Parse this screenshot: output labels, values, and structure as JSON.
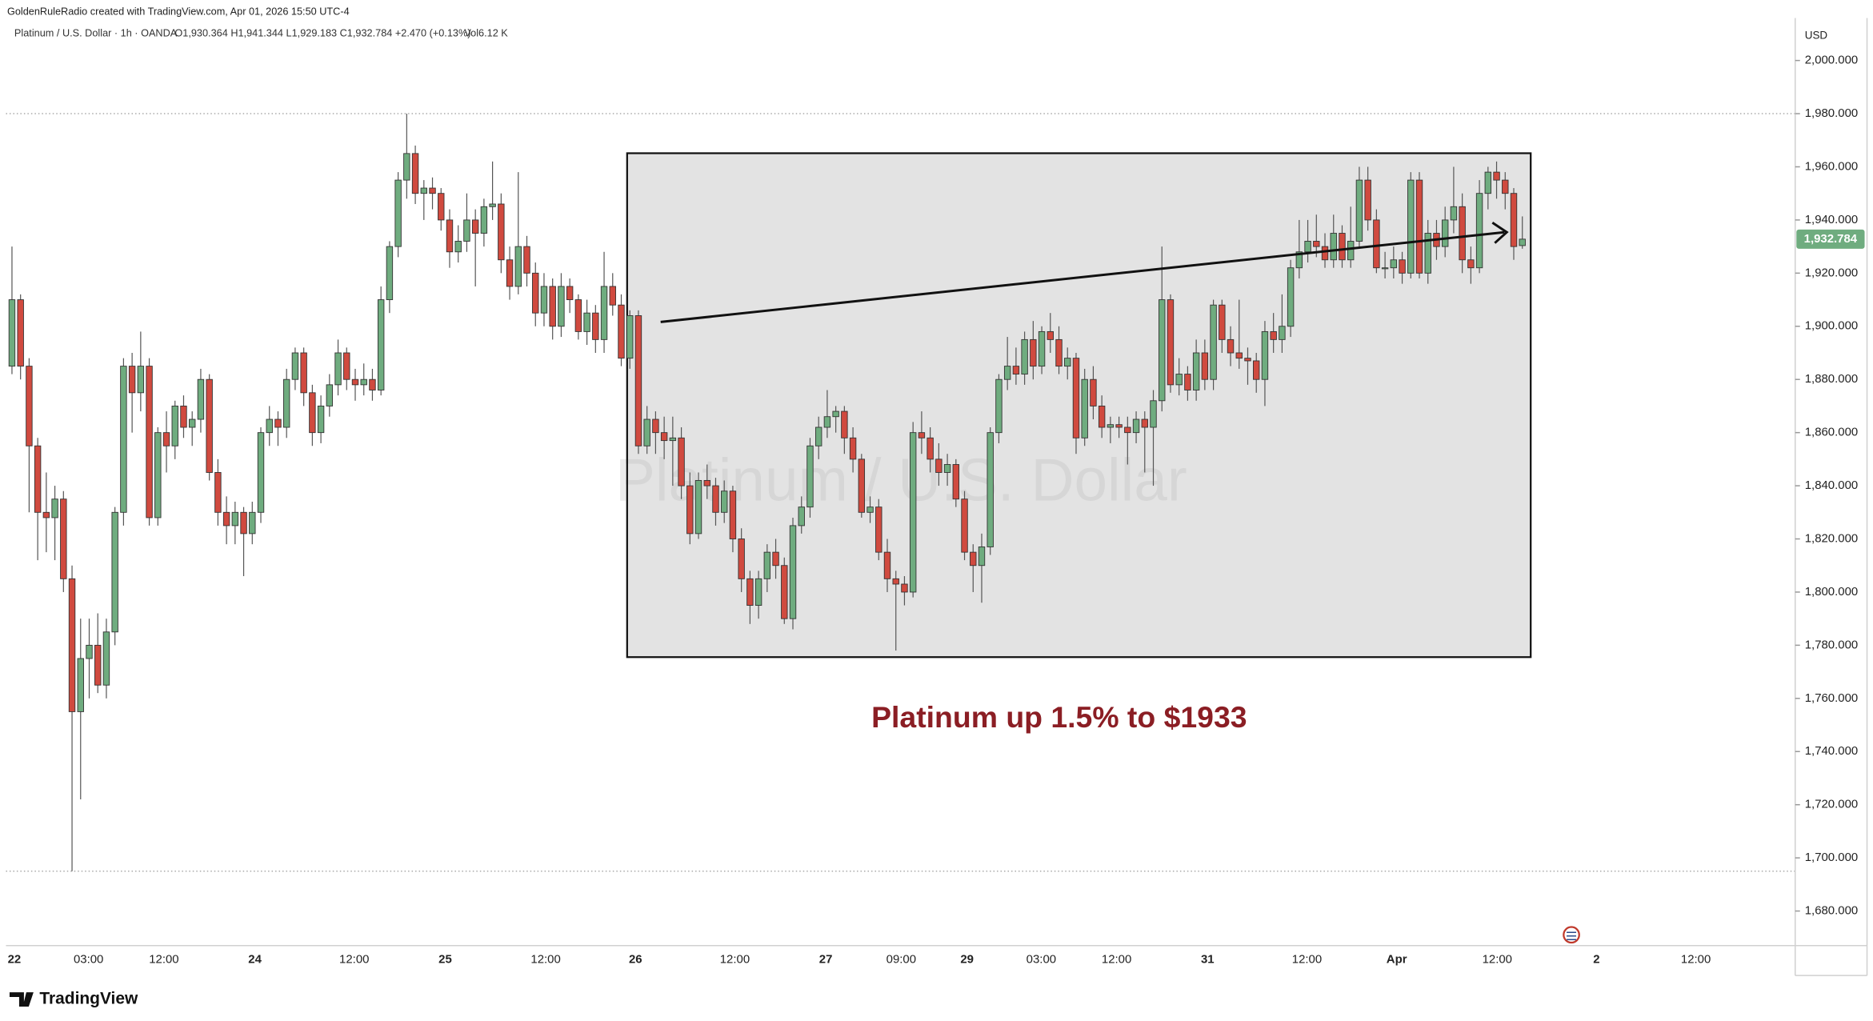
{
  "header": {
    "credit": "GoldenRuleRadio created with TradingView.com, Apr 01, 2026 15:50 UTC-4",
    "symbol": "Platinum / U.S. Dollar · 1h · OANDA",
    "ohlc": "O1,930.364 H1,941.344 L1,929.183 C1,932.784 +2.470 (+0.13%)",
    "volume": "Vol6.12 K"
  },
  "watermark": "Platinum / U.S. Dollar",
  "annotation": "Platinum up 1.5% to $1933",
  "currency": "USD",
  "price_label": "1,932.784",
  "logo": "TradingView",
  "chart_data": {
    "type": "candlestick",
    "up_color": "#6fac7f",
    "down_color": "#d04a3f",
    "ylim": [
      1667,
      2016
    ],
    "yticks": [
      {
        "value": 1680,
        "label": "1,680.000"
      },
      {
        "value": 1700,
        "label": "1,700.000"
      },
      {
        "value": 1720,
        "label": "1,720.000"
      },
      {
        "value": 1740,
        "label": "1,740.000"
      },
      {
        "value": 1760,
        "label": "1,760.000"
      },
      {
        "value": 1780,
        "label": "1,780.000"
      },
      {
        "value": 1800,
        "label": "1,800.000"
      },
      {
        "value": 1820,
        "label": "1,820.000"
      },
      {
        "value": 1840,
        "label": "1,840.000"
      },
      {
        "value": 1860,
        "label": "1,860.000"
      },
      {
        "value": 1880,
        "label": "1,880.000"
      },
      {
        "value": 1900,
        "label": "1,900.000"
      },
      {
        "value": 1920,
        "label": "1,920.000"
      },
      {
        "value": 1940,
        "label": "1,940.000"
      },
      {
        "value": 1960,
        "label": "1,960.000"
      },
      {
        "value": 1980,
        "label": "1,980.000"
      },
      {
        "value": 2000,
        "label": "2,000.000"
      }
    ],
    "time_labels": [
      "22",
      "03:00",
      "12:00",
      "24",
      "12:00",
      "25",
      "12:00",
      "26",
      "12:00",
      "27",
      "09:00",
      "29",
      "03:00",
      "12:00",
      "31",
      "12:00",
      "Apr",
      "12:00",
      "2",
      "12:00"
    ],
    "candles": [
      [
        1885,
        1930,
        1882,
        1910
      ],
      [
        1910,
        1912,
        1880,
        1885
      ],
      [
        1885,
        1888,
        1830,
        1855
      ],
      [
        1855,
        1858,
        1812,
        1830
      ],
      [
        1830,
        1845,
        1815,
        1828
      ],
      [
        1828,
        1840,
        1812,
        1835
      ],
      [
        1835,
        1838,
        1800,
        1805
      ],
      [
        1805,
        1810,
        1695,
        1755
      ],
      [
        1755,
        1790,
        1722,
        1775
      ],
      [
        1775,
        1790,
        1760,
        1780
      ],
      [
        1780,
        1792,
        1762,
        1765
      ],
      [
        1765,
        1790,
        1760,
        1785
      ],
      [
        1785,
        1832,
        1780,
        1830
      ],
      [
        1830,
        1888,
        1825,
        1885
      ],
      [
        1885,
        1890,
        1860,
        1875
      ],
      [
        1875,
        1898,
        1868,
        1885
      ],
      [
        1885,
        1888,
        1825,
        1828
      ],
      [
        1828,
        1862,
        1825,
        1860
      ],
      [
        1860,
        1868,
        1845,
        1855
      ],
      [
        1855,
        1872,
        1850,
        1870
      ],
      [
        1870,
        1874,
        1858,
        1862
      ],
      [
        1862,
        1868,
        1855,
        1865
      ],
      [
        1865,
        1884,
        1860,
        1880
      ],
      [
        1880,
        1882,
        1842,
        1845
      ],
      [
        1845,
        1850,
        1825,
        1830
      ],
      [
        1830,
        1836,
        1818,
        1825
      ],
      [
        1825,
        1834,
        1818,
        1830
      ],
      [
        1830,
        1832,
        1806,
        1822
      ],
      [
        1822,
        1834,
        1818,
        1830
      ],
      [
        1830,
        1862,
        1826,
        1860
      ],
      [
        1860,
        1870,
        1855,
        1865
      ],
      [
        1865,
        1868,
        1855,
        1862
      ],
      [
        1862,
        1884,
        1858,
        1880
      ],
      [
        1880,
        1892,
        1876,
        1890
      ],
      [
        1890,
        1892,
        1870,
        1875
      ],
      [
        1875,
        1878,
        1855,
        1860
      ],
      [
        1860,
        1874,
        1856,
        1870
      ],
      [
        1870,
        1882,
        1866,
        1878
      ],
      [
        1878,
        1895,
        1874,
        1890
      ],
      [
        1890,
        1892,
        1876,
        1880
      ],
      [
        1880,
        1884,
        1872,
        1878
      ],
      [
        1878,
        1886,
        1874,
        1880
      ],
      [
        1880,
        1884,
        1872,
        1876
      ],
      [
        1876,
        1915,
        1874,
        1910
      ],
      [
        1910,
        1932,
        1905,
        1930
      ],
      [
        1930,
        1958,
        1926,
        1955
      ],
      [
        1955,
        1980,
        1948,
        1965
      ],
      [
        1965,
        1968,
        1946,
        1950
      ],
      [
        1950,
        1955,
        1940,
        1952
      ],
      [
        1952,
        1956,
        1944,
        1950
      ],
      [
        1950,
        1952,
        1936,
        1940
      ],
      [
        1940,
        1944,
        1922,
        1928
      ],
      [
        1928,
        1938,
        1924,
        1932
      ],
      [
        1932,
        1950,
        1928,
        1940
      ],
      [
        1940,
        1944,
        1915,
        1935
      ],
      [
        1935,
        1948,
        1930,
        1945
      ],
      [
        1945,
        1962,
        1940,
        1946
      ],
      [
        1946,
        1950,
        1920,
        1925
      ],
      [
        1925,
        1930,
        1910,
        1915
      ],
      [
        1915,
        1958,
        1912,
        1930
      ],
      [
        1930,
        1934,
        1915,
        1920
      ],
      [
        1920,
        1924,
        1900,
        1905
      ],
      [
        1905,
        1920,
        1900,
        1915
      ],
      [
        1915,
        1918,
        1895,
        1900
      ],
      [
        1900,
        1920,
        1896,
        1915
      ],
      [
        1915,
        1918,
        1905,
        1910
      ],
      [
        1910,
        1912,
        1895,
        1898
      ],
      [
        1898,
        1910,
        1893,
        1905
      ],
      [
        1905,
        1908,
        1890,
        1895
      ],
      [
        1895,
        1928,
        1890,
        1915
      ],
      [
        1915,
        1920,
        1904,
        1908
      ],
      [
        1908,
        1912,
        1885,
        1888
      ],
      [
        1888,
        1906,
        1884,
        1904
      ],
      [
        1904,
        1906,
        1852,
        1855
      ],
      [
        1855,
        1870,
        1852,
        1865
      ],
      [
        1865,
        1868,
        1852,
        1860
      ],
      [
        1860,
        1866,
        1850,
        1857
      ],
      [
        1857,
        1866,
        1840,
        1858
      ],
      [
        1858,
        1862,
        1835,
        1840
      ],
      [
        1840,
        1845,
        1818,
        1822
      ],
      [
        1822,
        1845,
        1820,
        1842
      ],
      [
        1842,
        1848,
        1835,
        1840
      ],
      [
        1840,
        1843,
        1825,
        1830
      ],
      [
        1830,
        1842,
        1826,
        1838
      ],
      [
        1838,
        1840,
        1815,
        1820
      ],
      [
        1820,
        1824,
        1800,
        1805
      ],
      [
        1805,
        1808,
        1788,
        1795
      ],
      [
        1795,
        1808,
        1790,
        1805
      ],
      [
        1805,
        1818,
        1800,
        1815
      ],
      [
        1815,
        1820,
        1805,
        1810
      ],
      [
        1810,
        1813,
        1788,
        1790
      ],
      [
        1790,
        1828,
        1786,
        1825
      ],
      [
        1825,
        1836,
        1822,
        1832
      ],
      [
        1832,
        1858,
        1828,
        1855
      ],
      [
        1855,
        1866,
        1850,
        1862
      ],
      [
        1862,
        1876,
        1858,
        1866
      ],
      [
        1866,
        1870,
        1860,
        1868
      ],
      [
        1868,
        1870,
        1852,
        1858
      ],
      [
        1858,
        1862,
        1845,
        1850
      ],
      [
        1850,
        1852,
        1828,
        1830
      ],
      [
        1830,
        1836,
        1826,
        1832
      ],
      [
        1832,
        1835,
        1812,
        1815
      ],
      [
        1815,
        1820,
        1800,
        1805
      ],
      [
        1805,
        1808,
        1778,
        1803
      ],
      [
        1803,
        1806,
        1795,
        1800
      ],
      [
        1800,
        1864,
        1798,
        1860
      ],
      [
        1860,
        1868,
        1852,
        1858
      ],
      [
        1858,
        1862,
        1845,
        1850
      ],
      [
        1850,
        1856,
        1840,
        1845
      ],
      [
        1845,
        1852,
        1840,
        1848
      ],
      [
        1848,
        1850,
        1832,
        1835
      ],
      [
        1835,
        1838,
        1812,
        1815
      ],
      [
        1815,
        1818,
        1800,
        1810
      ],
      [
        1810,
        1822,
        1796,
        1817
      ],
      [
        1817,
        1862,
        1814,
        1860
      ],
      [
        1860,
        1882,
        1856,
        1880
      ],
      [
        1880,
        1896,
        1876,
        1885
      ],
      [
        1885,
        1892,
        1878,
        1882
      ],
      [
        1882,
        1898,
        1878,
        1895
      ],
      [
        1895,
        1902,
        1880,
        1885
      ],
      [
        1885,
        1900,
        1882,
        1898
      ],
      [
        1898,
        1905,
        1890,
        1895
      ],
      [
        1895,
        1900,
        1882,
        1885
      ],
      [
        1885,
        1892,
        1880,
        1888
      ],
      [
        1888,
        1890,
        1852,
        1858
      ],
      [
        1858,
        1884,
        1855,
        1880
      ],
      [
        1880,
        1885,
        1865,
        1870
      ],
      [
        1870,
        1874,
        1858,
        1862
      ],
      [
        1862,
        1866,
        1856,
        1863
      ],
      [
        1863,
        1866,
        1858,
        1862
      ],
      [
        1862,
        1866,
        1848,
        1860
      ],
      [
        1860,
        1868,
        1856,
        1865
      ],
      [
        1865,
        1868,
        1845,
        1862
      ],
      [
        1862,
        1876,
        1840,
        1872
      ],
      [
        1872,
        1930,
        1868,
        1910
      ],
      [
        1910,
        1912,
        1875,
        1878
      ],
      [
        1878,
        1888,
        1874,
        1882
      ],
      [
        1882,
        1885,
        1872,
        1876
      ],
      [
        1876,
        1895,
        1872,
        1890
      ],
      [
        1890,
        1895,
        1876,
        1880
      ],
      [
        1880,
        1910,
        1876,
        1908
      ],
      [
        1908,
        1910,
        1890,
        1895
      ],
      [
        1895,
        1900,
        1885,
        1890
      ],
      [
        1890,
        1910,
        1884,
        1888
      ],
      [
        1888,
        1892,
        1878,
        1887
      ],
      [
        1887,
        1890,
        1875,
        1880
      ],
      [
        1880,
        1902,
        1870,
        1898
      ],
      [
        1898,
        1905,
        1890,
        1895
      ],
      [
        1895,
        1912,
        1890,
        1900
      ],
      [
        1900,
        1925,
        1896,
        1922
      ],
      [
        1922,
        1940,
        1918,
        1928
      ],
      [
        1928,
        1940,
        1924,
        1932
      ],
      [
        1932,
        1942,
        1926,
        1930
      ],
      [
        1930,
        1935,
        1922,
        1925
      ],
      [
        1925,
        1942,
        1922,
        1935
      ],
      [
        1935,
        1938,
        1922,
        1925
      ],
      [
        1925,
        1945,
        1922,
        1932
      ],
      [
        1932,
        1960,
        1930,
        1955
      ],
      [
        1955,
        1960,
        1936,
        1940
      ],
      [
        1940,
        1944,
        1920,
        1922
      ],
      [
        1922,
        1928,
        1918,
        1922
      ],
      [
        1922,
        1930,
        1918,
        1925
      ],
      [
        1925,
        1928,
        1916,
        1920
      ],
      [
        1920,
        1958,
        1918,
        1955
      ],
      [
        1955,
        1958,
        1918,
        1920
      ],
      [
        1920,
        1940,
        1916,
        1935
      ],
      [
        1935,
        1940,
        1925,
        1930
      ],
      [
        1930,
        1945,
        1926,
        1940
      ],
      [
        1940,
        1960,
        1935,
        1945
      ],
      [
        1945,
        1950,
        1920,
        1925
      ],
      [
        1925,
        1930,
        1916,
        1922
      ],
      [
        1922,
        1955,
        1920,
        1950
      ],
      [
        1950,
        1960,
        1944,
        1958
      ],
      [
        1958,
        1962,
        1948,
        1955
      ],
      [
        1955,
        1958,
        1944,
        1950
      ],
      [
        1950,
        1952,
        1925,
        1930
      ],
      [
        1930.364,
        1941.344,
        1929.183,
        1932.784
      ]
    ]
  }
}
